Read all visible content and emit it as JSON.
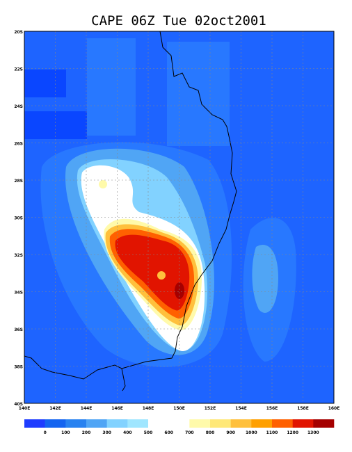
{
  "title": "CAPE 06Z Tue 02oct2001",
  "lat_labels": [
    "20S",
    "22S",
    "24S",
    "26S",
    "28S",
    "30S",
    "32S",
    "34S",
    "36S",
    "38S",
    "40S"
  ],
  "lon_labels": [
    "140E",
    "142E",
    "144E",
    "146E",
    "148E",
    "150E",
    "152E",
    "154E",
    "156E",
    "158E",
    "160E"
  ],
  "colorbar": {
    "labels": [
      "0",
      "100",
      "200",
      "300",
      "400",
      "500",
      "600",
      "700",
      "800",
      "900",
      "1000",
      "1100",
      "1200",
      "1300"
    ],
    "colors": [
      "#1e3cff",
      "#1464f0",
      "#2882f0",
      "#50a5f5",
      "#82d2ff",
      "#a0e6ff",
      "#ffffff",
      "#ffffff",
      "#fffaaa",
      "#ffe878",
      "#ffc03c",
      "#ffa000",
      "#ff6000",
      "#e11400",
      "#a50000"
    ]
  }
}
